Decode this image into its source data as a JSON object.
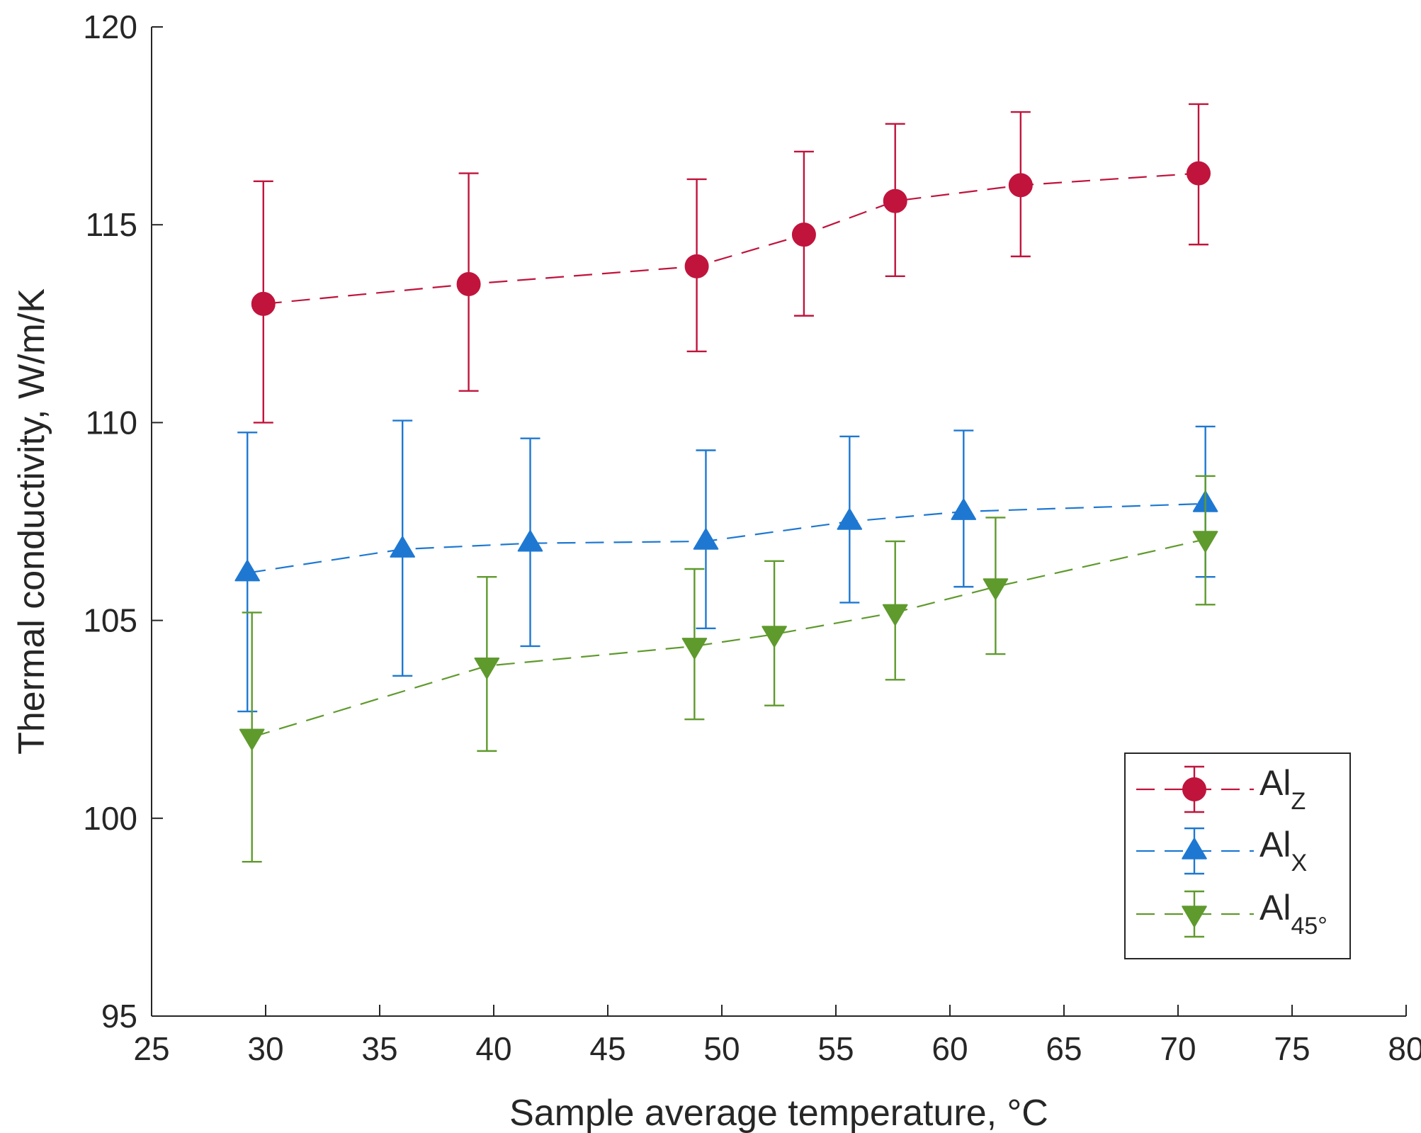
{
  "chart_data": {
    "type": "line",
    "title": "",
    "xlabel": "Sample average temperature, °C",
    "ylabel": "Thermal conductivity, W/m/K",
    "xlim": [
      25,
      80
    ],
    "ylim": [
      95,
      120
    ],
    "xticks": [
      25,
      30,
      35,
      40,
      45,
      50,
      55,
      60,
      65,
      70,
      75,
      80
    ],
    "yticks": [
      95,
      100,
      105,
      110,
      115,
      120
    ],
    "grid": false,
    "legend_position": "bottom-right",
    "series": [
      {
        "name": "Al_Z",
        "label_main": "Al",
        "label_sub": "Z",
        "marker": "circle",
        "color": "#c0143c",
        "line_style": "dashed",
        "x": [
          29.9,
          38.9,
          48.9,
          53.6,
          57.6,
          63.1,
          70.9
        ],
        "y": [
          113.0,
          113.5,
          113.95,
          114.75,
          115.6,
          116.0,
          116.3
        ],
        "err_low": [
          110.0,
          110.8,
          111.8,
          112.7,
          113.7,
          114.2,
          114.5
        ],
        "err_high": [
          116.1,
          116.3,
          116.15,
          116.85,
          117.55,
          117.85,
          118.05
        ]
      },
      {
        "name": "Al_X",
        "label_main": "Al",
        "label_sub": "X",
        "marker": "triangle-up",
        "color": "#1e78d2",
        "line_style": "dashed",
        "x": [
          29.2,
          36.0,
          41.6,
          49.3,
          55.6,
          60.6,
          71.2
        ],
        "y": [
          106.2,
          106.8,
          106.95,
          107.0,
          107.5,
          107.75,
          107.95
        ],
        "err_low": [
          102.7,
          103.6,
          104.35,
          104.8,
          105.45,
          105.85,
          106.1
        ],
        "err_high": [
          109.75,
          110.05,
          109.6,
          109.3,
          109.65,
          109.8,
          109.9
        ]
      },
      {
        "name": "Al_45°",
        "label_main": "Al",
        "label_sub": "45°",
        "marker": "triangle-down",
        "color": "#5f9a2d",
        "line_style": "dashed",
        "x": [
          29.4,
          39.7,
          48.8,
          52.3,
          57.6,
          62.0,
          71.2
        ],
        "y": [
          102.05,
          103.85,
          104.35,
          104.65,
          105.2,
          105.85,
          107.05
        ],
        "err_low": [
          98.9,
          101.7,
          102.5,
          102.85,
          103.5,
          104.15,
          105.4
        ],
        "err_high": [
          105.2,
          106.1,
          106.3,
          106.5,
          107.0,
          107.6,
          108.65
        ]
      }
    ]
  }
}
